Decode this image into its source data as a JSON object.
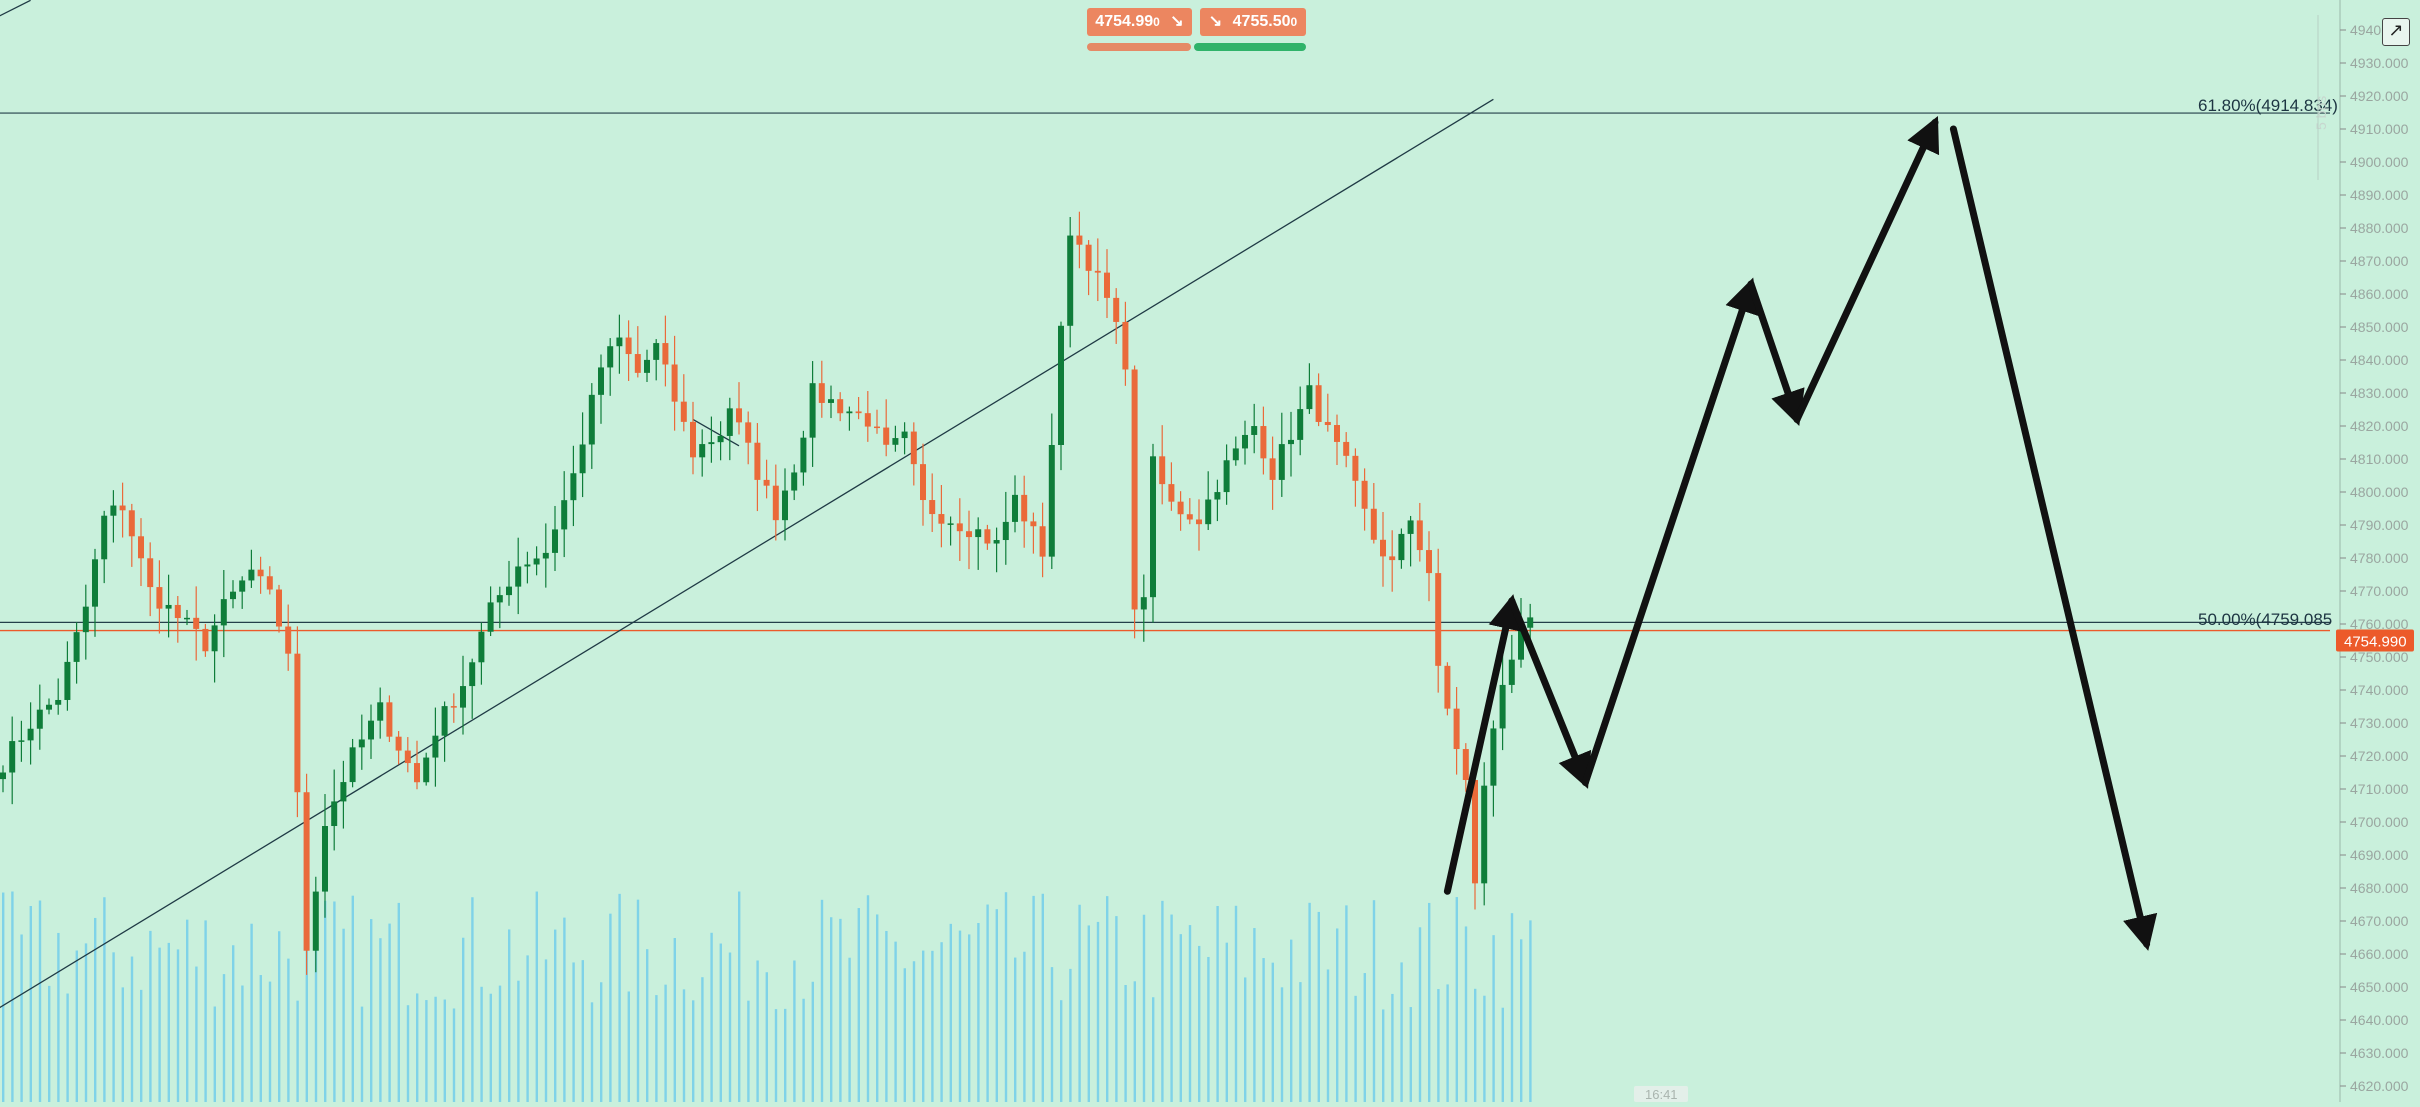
{
  "trade": {
    "sell_price": "4754.99",
    "sell_suffix": "0",
    "buy_price": "4755.50",
    "buy_suffix": "0",
    "sell_icon": "arrow-down-right-icon",
    "buy_icon": "arrow-down-right-icon"
  },
  "expand_icon": "expand-external-icon",
  "colors": {
    "background": "#c9f0dc",
    "up_candle": "#0f7d3a",
    "down_candle": "#ea6a3a",
    "volume": "#7fd3e8",
    "current_price": "#ec5a2a",
    "sell_bar": "#e58a66",
    "buy_bar": "#2fb36a",
    "forecast_arrow": "#111111"
  },
  "chart_data": {
    "type": "candlestick",
    "x_unit": "bar index",
    "ylim": [
      4615,
      4945
    ],
    "y_ticks": [
      "4620.000",
      "4630.000",
      "4640.000",
      "4650.000",
      "4660.000",
      "4670.000",
      "4680.000",
      "4690.000",
      "4700.000",
      "4710.000",
      "4720.000",
      "4730.000",
      "4740.000",
      "4750.000",
      "4760.000",
      "4770.000",
      "4780.000",
      "4790.000",
      "4800.000",
      "4810.000",
      "4820.000",
      "4830.000",
      "4840.000",
      "4850.000",
      "4860.000",
      "4870.000",
      "4880.000",
      "4890.000",
      "4900.000",
      "4910.000",
      "4920.000",
      "4930.000",
      "4940.000"
    ],
    "current_price": "4754.990",
    "fib_levels": [
      {
        "label": "61.80%(4914.834)",
        "value": 4914.834
      },
      {
        "label": "50.00%(4759.085",
        "value": 4759.085
      }
    ],
    "time_label": "16:41",
    "watermark": "5 bps",
    "ohlc_anchor_closes": [
      [
        0,
        4718
      ],
      [
        3,
        4730
      ],
      [
        6,
        4738
      ],
      [
        9,
        4765
      ],
      [
        11,
        4792
      ],
      [
        13,
        4796
      ],
      [
        16,
        4770
      ],
      [
        19,
        4762
      ],
      [
        22,
        4754
      ],
      [
        24,
        4765
      ],
      [
        27,
        4776
      ],
      [
        29,
        4768
      ],
      [
        31,
        4752
      ],
      [
        33,
        4662
      ],
      [
        35,
        4700
      ],
      [
        38,
        4720
      ],
      [
        41,
        4734
      ],
      [
        45,
        4712
      ],
      [
        47,
        4728
      ],
      [
        50,
        4742
      ],
      [
        53,
        4764
      ],
      [
        56,
        4778
      ],
      [
        59,
        4782
      ],
      [
        62,
        4805
      ],
      [
        65,
        4838
      ],
      [
        67,
        4846
      ],
      [
        69,
        4836
      ],
      [
        71,
        4844
      ],
      [
        73,
        4828
      ],
      [
        75,
        4812
      ],
      [
        78,
        4818
      ],
      [
        79,
        4826
      ],
      [
        82,
        4806
      ],
      [
        84,
        4794
      ],
      [
        86,
        4808
      ],
      [
        88,
        4830
      ],
      [
        91,
        4826
      ],
      [
        94,
        4822
      ],
      [
        96,
        4812
      ],
      [
        98,
        4816
      ],
      [
        100,
        4796
      ],
      [
        103,
        4792
      ],
      [
        106,
        4788
      ],
      [
        108,
        4784
      ],
      [
        110,
        4798
      ],
      [
        113,
        4782
      ],
      [
        115,
        4848
      ],
      [
        116,
        4880
      ],
      [
        118,
        4870
      ],
      [
        120,
        4858
      ],
      [
        122,
        4840
      ],
      [
        123,
        4762
      ],
      [
        124,
        4770
      ],
      [
        125,
        4808
      ],
      [
        127,
        4796
      ],
      [
        130,
        4792
      ],
      [
        133,
        4808
      ],
      [
        136,
        4820
      ],
      [
        138,
        4806
      ],
      [
        140,
        4818
      ],
      [
        142,
        4830
      ],
      [
        144,
        4818
      ],
      [
        146,
        4808
      ],
      [
        149,
        4786
      ],
      [
        151,
        4778
      ],
      [
        153,
        4792
      ],
      [
        155,
        4776
      ],
      [
        156,
        4745
      ],
      [
        159,
        4712
      ],
      [
        160,
        4680
      ],
      [
        161,
        4712
      ],
      [
        163,
        4742
      ],
      [
        165,
        4760
      ],
      [
        166,
        4762
      ]
    ],
    "volume_range": [
      0.28,
      0.64
    ],
    "trendlines": [
      {
        "from": [
          -2,
          4641
        ],
        "to": [
          162,
          4919
        ]
      },
      {
        "from": [
          -2,
          4942
        ],
        "to": [
          3,
          4949
        ]
      },
      {
        "from": [
          75,
          4822
        ],
        "to": [
          80,
          4814
        ]
      }
    ],
    "horizontal_lines": [
      4914.834,
      4760.5,
      4758.0
    ],
    "forecast_path": [
      [
        157,
        4679
      ],
      [
        164,
        4767
      ],
      [
        172,
        4712
      ],
      [
        190,
        4863
      ],
      [
        195,
        4822
      ],
      [
        210,
        4912
      ]
    ],
    "forecast_path_2": [
      [
        212,
        4910
      ],
      [
        233,
        4663
      ]
    ]
  }
}
